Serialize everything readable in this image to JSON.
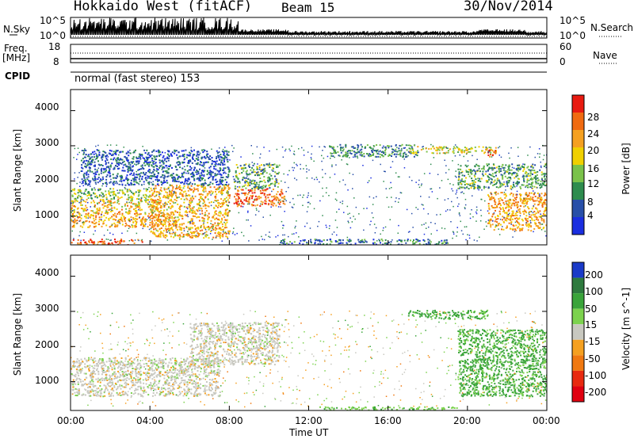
{
  "header": {
    "station": "Hokkaido West (fitACF)",
    "beam": "Beam 15",
    "date": "30/Nov/2014"
  },
  "top_panels": {
    "nsky_label": "N.Sky",
    "nsky_ticks": [
      "10^5",
      "10^0"
    ],
    "nsearch_label": "N.Search",
    "nsearch_ticks": [
      "10^5",
      "10^0"
    ],
    "freq_label": "Freq.",
    "freq_unit": "[MHz]",
    "freq_ticks": [
      "18",
      "8"
    ],
    "nave_label": "Nave",
    "nave_ticks": [
      "60",
      "0"
    ],
    "cpid_label": "CPID",
    "cpid_text": "normal (fast stereo) 153"
  },
  "chart_data": [
    {
      "type": "heatmap",
      "title": "",
      "xlabel": "Time UT",
      "ylabel": "Slant Range [km]",
      "x_ticks": [
        "00:00",
        "04:00",
        "08:00",
        "12:00",
        "16:00",
        "20:00",
        "00:00"
      ],
      "y_ticks": [
        1000,
        2000,
        3000,
        4000
      ],
      "xlim": [
        0,
        24
      ],
      "ylim": [
        180,
        4600
      ],
      "colorbar_label": "Power [dB]",
      "colorbar_ticks": [
        4,
        8,
        12,
        16,
        20,
        24,
        28
      ],
      "colorbar_colors": [
        "#1a2ee0",
        "#284fa8",
        "#2e8c4e",
        "#7ac24a",
        "#f0d000",
        "#f5a020",
        "#f06a10",
        "#e81a10"
      ],
      "regions": [
        {
          "t0": 0.0,
          "t1": 3.6,
          "r0": 200,
          "r1": 360,
          "value": 26
        },
        {
          "t0": 0.0,
          "t1": 5.5,
          "r0": 700,
          "r1": 1100,
          "value": 22
        },
        {
          "t0": 0.0,
          "t1": 4.5,
          "r0": 1100,
          "r1": 1500,
          "value": 20
        },
        {
          "t0": 0.0,
          "t1": 4.0,
          "r0": 1500,
          "r1": 1800,
          "value": 14
        },
        {
          "t0": 4.0,
          "t1": 8.0,
          "r0": 400,
          "r1": 1900,
          "value": 21
        },
        {
          "t0": 8.2,
          "t1": 10.8,
          "r0": 1300,
          "r1": 1800,
          "value": 26
        },
        {
          "t0": 8.2,
          "t1": 10.5,
          "r0": 1800,
          "r1": 2500,
          "value": 12
        },
        {
          "t0": 0.5,
          "t1": 8.0,
          "r0": 1900,
          "r1": 2900,
          "value": 6
        },
        {
          "t0": 10.5,
          "t1": 19.0,
          "r0": 200,
          "r1": 360,
          "value": 8
        },
        {
          "t0": 13.0,
          "t1": 17.5,
          "r0": 2700,
          "r1": 3050,
          "value": 10
        },
        {
          "t0": 17.0,
          "t1": 21.5,
          "r0": 2800,
          "r1": 3000,
          "value": 18
        },
        {
          "t0": 21.0,
          "t1": 21.5,
          "r0": 2700,
          "r1": 2900,
          "value": 27
        },
        {
          "t0": 19.5,
          "t1": 24.0,
          "r0": 1800,
          "r1": 2500,
          "value": 12
        },
        {
          "t0": 21.0,
          "t1": 24.0,
          "r0": 600,
          "r1": 1700,
          "value": 22
        }
      ]
    },
    {
      "type": "heatmap",
      "title": "",
      "xlabel": "Time UT",
      "ylabel": "Slant Range [km]",
      "x_ticks": [
        "00:00",
        "04:00",
        "08:00",
        "12:00",
        "16:00",
        "20:00",
        "00:00"
      ],
      "y_ticks": [
        1000,
        2000,
        3000,
        4000
      ],
      "xlim": [
        0,
        24
      ],
      "ylim": [
        180,
        4600
      ],
      "colorbar_label": "Velocity [m s^-1]",
      "colorbar_ticks": [
        200,
        100,
        50,
        15,
        -15,
        -50,
        -100,
        -200
      ],
      "colorbar_colors": [
        "#1a3ac8",
        "#2e7a3e",
        "#3aa43a",
        "#7cd24e",
        "#c8c8c0",
        "#f5a020",
        "#f07810",
        "#e82a10",
        "#e00010"
      ],
      "regions": [
        {
          "t0": 0.0,
          "t1": 7.5,
          "r0": 600,
          "r1": 1700,
          "value": 0
        },
        {
          "t0": 6.0,
          "t1": 10.5,
          "r0": 1500,
          "r1": 2700,
          "value": 0
        },
        {
          "t0": 12.5,
          "t1": 19.5,
          "r0": 200,
          "r1": 300,
          "value": 40
        },
        {
          "t0": 17.0,
          "t1": 21.0,
          "r0": 2800,
          "r1": 3050,
          "value": 60
        },
        {
          "t0": 19.5,
          "t1": 24.0,
          "r0": 600,
          "r1": 2500,
          "value": 60
        }
      ]
    }
  ]
}
